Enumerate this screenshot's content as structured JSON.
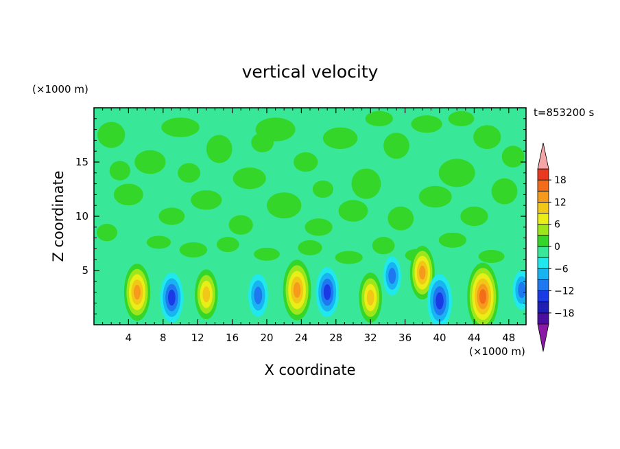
{
  "chart_data": {
    "type": "heatmap",
    "title": "vertical velocity",
    "xlabel": "X coordinate",
    "ylabel": "Z coordinate",
    "x_unit": "(×1000 m)",
    "y_unit": "(×1000 m)",
    "time_label": "t=853200 s",
    "xlim": [
      0,
      50
    ],
    "ylim": [
      0,
      20
    ],
    "x_ticks": [
      4,
      8,
      12,
      16,
      20,
      24,
      28,
      32,
      36,
      40,
      44,
      48
    ],
    "y_ticks": [
      5,
      10,
      15
    ],
    "colorbar": {
      "levels": [
        -21,
        -18,
        -15,
        -12,
        -9,
        -6,
        -3,
        0,
        3,
        6,
        9,
        12,
        15,
        18,
        21
      ],
      "tick_labels": [
        "18",
        "12",
        "6",
        "0",
        "−6",
        "−12",
        "−18"
      ],
      "tick_values": [
        18,
        12,
        6,
        0,
        -6,
        -12,
        -18
      ],
      "colors": [
        "#8a1aa6",
        "#4b0fa0",
        "#1f1fb4",
        "#1a3ae6",
        "#1e78f0",
        "#18b4f2",
        "#20e8ec",
        "#38e898",
        "#34d62a",
        "#9ee61c",
        "#e8ee16",
        "#f2c818",
        "#f59a1a",
        "#f26c1a",
        "#e83a1e",
        "#f4a6a6"
      ],
      "over_color": "#f4a6a6",
      "under_color": "#8a1aa6"
    },
    "cells": [
      {
        "x": 5,
        "z": 3,
        "w": 0.8
      },
      {
        "x": 9,
        "z": 2.5,
        "w": 0.7
      },
      {
        "x": 13,
        "z": 2.8,
        "w": 0.7
      },
      {
        "x": 19,
        "z": 2.7,
        "w": 0.6
      },
      {
        "x": 23.5,
        "z": 3.2,
        "w": 0.85
      },
      {
        "x": 27,
        "z": 3,
        "w": 0.7
      },
      {
        "x": 32,
        "z": 2.5,
        "w": 0.7
      },
      {
        "x": 34.5,
        "z": 4.5,
        "w": 0.55
      },
      {
        "x": 38,
        "z": 4.8,
        "w": 0.75
      },
      {
        "x": 40,
        "z": 2.2,
        "w": 0.75
      },
      {
        "x": 45,
        "z": 2.6,
        "w": 0.95
      },
      {
        "x": 49.5,
        "z": 3.2,
        "w": 0.55
      }
    ]
  }
}
